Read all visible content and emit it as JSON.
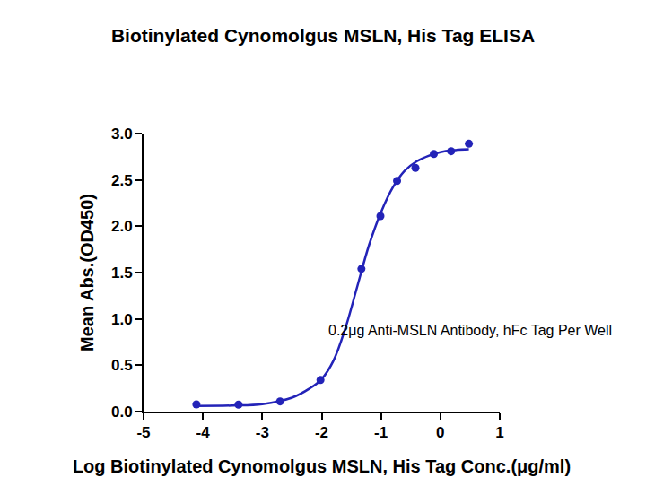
{
  "chart_data": {
    "type": "scatter",
    "title": "Biotinylated Cynomolgus MSLN, His Tag ELISA",
    "subtitle": "0.2μg Anti-MSLN Antibody, hFc Tag Per Well",
    "x_label": "Log Biotinylated Cynomolgus MSLN, His Tag Conc.(μg/ml)",
    "y_label": "Mean Abs.(OD450)",
    "series": [
      {
        "type": "scatter",
        "color": "#2323b8",
        "marker": "circle",
        "x": [
          -4.11,
          -3.4,
          -2.7,
          -2.02,
          -1.33,
          -1.01,
          -0.73,
          -0.42,
          -0.11,
          0.18,
          0.48
        ],
        "values": [
          0.077,
          0.075,
          0.11,
          0.34,
          1.54,
          2.11,
          2.49,
          2.63,
          2.78,
          2.81,
          2.89
        ]
      },
      {
        "type": "line",
        "color": "#2323b8",
        "line_style": "solid",
        "x": [
          -4.13,
          -3.5,
          -3.0,
          -2.5,
          -2.2,
          -2.0,
          -1.8,
          -1.6,
          -1.4,
          -1.2,
          -1.0,
          -0.8,
          -0.6,
          -0.4,
          -0.2,
          0.0,
          0.2,
          0.48
        ],
        "values": [
          0.06,
          0.065,
          0.08,
          0.15,
          0.25,
          0.35,
          0.55,
          0.9,
          1.35,
          1.8,
          2.15,
          2.42,
          2.6,
          2.7,
          2.76,
          2.8,
          2.82,
          2.83
        ]
      }
    ],
    "xlim": [
      -5,
      1
    ],
    "xticks": [
      -5,
      -4,
      -3,
      -2,
      -1,
      0,
      1
    ],
    "ylim": [
      0,
      3
    ],
    "yticks": [
      {
        "value": 0,
        "label": "0.0"
      },
      0.5,
      {
        "value": 1,
        "label": "1.0"
      },
      1.5,
      {
        "value": 2,
        "label": "2.0"
      },
      2.5,
      {
        "value": 3,
        "label": "3.0"
      }
    ],
    "grid": false
  }
}
